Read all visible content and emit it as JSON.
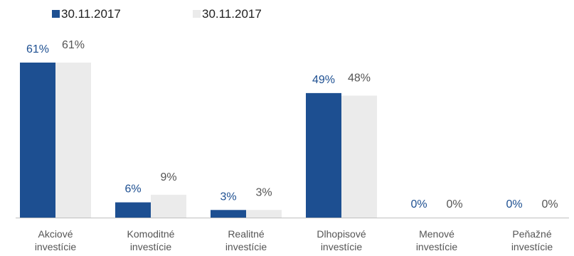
{
  "chart_data": {
    "type": "bar",
    "categories": [
      [
        "Akciové",
        "investície"
      ],
      [
        "Komoditné",
        "investície"
      ],
      [
        "Realitné",
        "investície"
      ],
      [
        "Dlhopisové",
        "investície"
      ],
      [
        "Menové",
        "investície"
      ],
      [
        "Peňažné",
        "investície"
      ]
    ],
    "series": [
      {
        "name": "30.11.2017",
        "values": [
          61,
          6,
          3,
          49,
          0,
          0
        ],
        "labels": [
          "61%",
          "6%",
          "3%",
          "49%",
          "0%",
          "0%"
        ],
        "color": "#1d4f91",
        "label_color": "#1d4f91"
      },
      {
        "name": "30.11.2017",
        "values": [
          61,
          9,
          3,
          48,
          0,
          0
        ],
        "labels": [
          "61%",
          "9%",
          "3%",
          "48%",
          "0%",
          "0%"
        ],
        "color": "#ebebeb",
        "label_color": "#555555"
      }
    ],
    "title": "",
    "xlabel": "",
    "ylabel": "",
    "ylim": [
      0,
      61
    ],
    "grid": false,
    "legend_position": "top-left",
    "axis_color": "#bfbfbf"
  }
}
